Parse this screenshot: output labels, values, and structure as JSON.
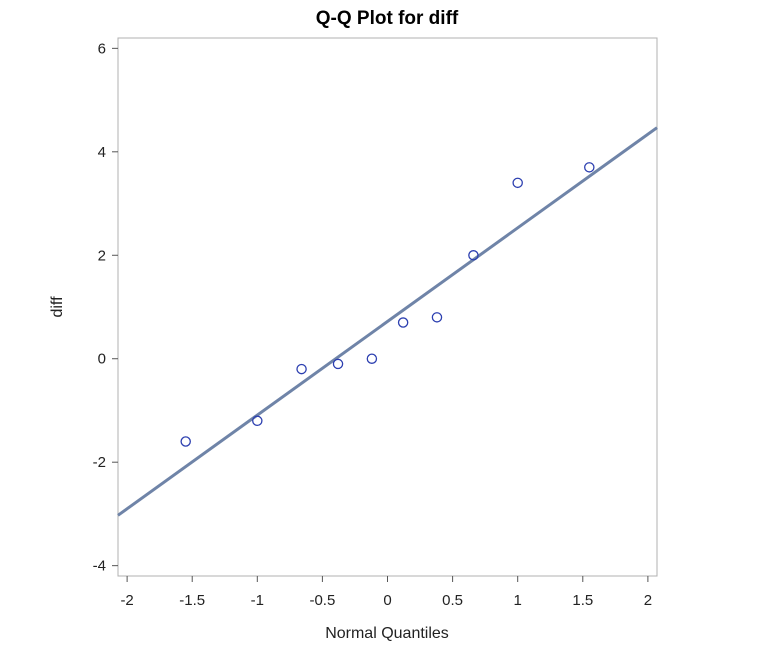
{
  "chart_data": {
    "type": "scatter",
    "title": "Q-Q Plot for diff",
    "xlabel": "Normal Quantiles",
    "ylabel": "diff",
    "xlim": [
      -2.07,
      2.07
    ],
    "ylim": [
      -4.2,
      6.2
    ],
    "xticks": [
      "-2",
      "-1.5",
      "-1",
      "-0.5",
      "0",
      "0.5",
      "1",
      "1.5",
      "2"
    ],
    "yticks": [
      "-4",
      "-2",
      "0",
      "2",
      "4",
      "6"
    ],
    "grid": false,
    "legend": "none",
    "points": [
      {
        "x": -1.55,
        "y": -1.6
      },
      {
        "x": -1.0,
        "y": -1.2
      },
      {
        "x": -0.66,
        "y": -0.2
      },
      {
        "x": -0.38,
        "y": -0.1
      },
      {
        "x": -0.12,
        "y": 0.0
      },
      {
        "x": 0.12,
        "y": 0.7
      },
      {
        "x": 0.38,
        "y": 0.8
      },
      {
        "x": 0.66,
        "y": 2.0
      },
      {
        "x": 1.0,
        "y": 3.4
      },
      {
        "x": 1.55,
        "y": 3.7
      }
    ],
    "reference_line": {
      "intercept": 0.72,
      "slope": 1.81
    },
    "colors": {
      "points": "#2c3fb0",
      "line": "#6f84a8",
      "frame": "#b0b0b0"
    }
  }
}
